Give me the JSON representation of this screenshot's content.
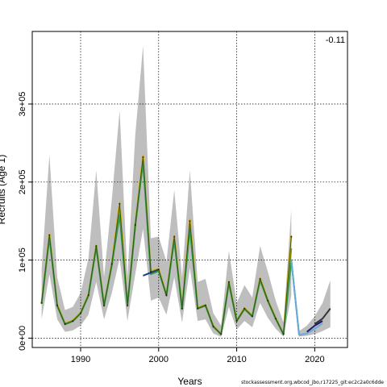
{
  "annotation": "-0.11",
  "footer": "stockassessment.org,wbcod_jbo,r17225_git:ec2c2a0c6dde",
  "chart_data": {
    "type": "area",
    "title": "",
    "xlabel": "Years",
    "ylabel": "Recruits (Age 1)",
    "xlim": [
      1983.8,
      2024.2
    ],
    "ylim": [
      -12000,
      393000
    ],
    "xticks": [
      1990,
      2000,
      2010,
      2020
    ],
    "yticks": [
      0,
      100000,
      200000,
      300000
    ],
    "ytick_labels": [
      "0e+00",
      "1e+05",
      "2e+05",
      "3e+05"
    ],
    "grid": true,
    "x": [
      1985,
      1986,
      1987,
      1988,
      1989,
      1990,
      1991,
      1992,
      1993,
      1994,
      1995,
      1996,
      1997,
      1998,
      1999,
      2000,
      2001,
      2002,
      2003,
      2004,
      2005,
      2006,
      2007,
      2008,
      2009,
      2010,
      2011,
      2012,
      2013,
      2014,
      2015,
      2016,
      2017
    ],
    "estimate": [
      45000,
      132000,
      42000,
      18000,
      22000,
      32000,
      55000,
      118000,
      42000,
      95000,
      172000,
      42000,
      145000,
      232000,
      85000,
      88000,
      55000,
      130000,
      38000,
      150000,
      38000,
      42000,
      15000,
      5000,
      72000,
      22000,
      38000,
      28000,
      76000,
      48000,
      25000,
      5000,
      130000
    ],
    "ci_lower": [
      24000,
      82000,
      24000,
      8000,
      10000,
      16000,
      30000,
      72000,
      24000,
      58000,
      102000,
      22000,
      82000,
      140000,
      48000,
      52000,
      30000,
      78000,
      20000,
      90000,
      22000,
      24000,
      6000,
      1500,
      40000,
      11000,
      22000,
      14000,
      45000,
      26000,
      12000,
      2000,
      55000
    ],
    "ci_upper": [
      88000,
      235000,
      78000,
      36000,
      40000,
      58000,
      102000,
      215000,
      78000,
      178000,
      292000,
      78000,
      260000,
      375000,
      128000,
      130000,
      98000,
      190000,
      78000,
      215000,
      72000,
      76000,
      32000,
      16000,
      112000,
      45000,
      68000,
      52000,
      118000,
      85000,
      48000,
      20000,
      165000
    ],
    "retro_series": [
      {
        "color": "#d9b100",
        "x": [
          1985,
          1986,
          1987,
          1988,
          1989,
          1990,
          1991,
          1992,
          1993,
          1994,
          1995,
          1996,
          1997,
          1998,
          1999,
          2000,
          2001,
          2002,
          2003,
          2004,
          2005,
          2006,
          2007,
          2008,
          2009,
          2010,
          2011,
          2012,
          2013,
          2014,
          2015,
          2016,
          2017
        ],
        "values": [
          46000,
          133000,
          43000,
          19000,
          23000,
          33000,
          56000,
          119000,
          43000,
          96000,
          174000,
          43000,
          147000,
          234000,
          86000,
          89000,
          56000,
          131000,
          39000,
          152000,
          39000,
          43000,
          16000,
          5500,
          73000,
          23000,
          39000,
          29000,
          77000,
          49000,
          26000,
          5500,
          131000
        ]
      },
      {
        "color": "#8a9a1a",
        "x": [
          1985,
          1986,
          1987,
          1988,
          1989,
          1990,
          1991,
          1992,
          1993,
          1994,
          1995,
          1996,
          1997,
          1998,
          1999,
          2000,
          2001,
          2002,
          2003,
          2004,
          2005,
          2006,
          2007,
          2008,
          2009,
          2010,
          2011,
          2012,
          2013,
          2014,
          2015,
          2016,
          2017
        ],
        "values": [
          44000,
          130000,
          41000,
          17500,
          21500,
          31500,
          54000,
          116000,
          41000,
          93000,
          165000,
          41000,
          143000,
          228000,
          83000,
          87000,
          54000,
          127000,
          37000,
          146000,
          37500,
          41500,
          14500,
          4800,
          70000,
          21500,
          37000,
          27500,
          74000,
          47000,
          24500,
          4800,
          115000
        ]
      },
      {
        "color": "#2e9a4a",
        "x": [
          1985,
          1986,
          1987,
          1988,
          1989,
          1990,
          1991,
          1992,
          1993,
          1994,
          1995,
          1996,
          1997,
          1998,
          1999,
          2000,
          2001,
          2002,
          2003,
          2004,
          2005,
          2006,
          2007,
          2008,
          2009,
          2010,
          2011,
          2012,
          2013,
          2014,
          2015,
          2016,
          2017,
          2018
        ],
        "values": [
          44500,
          129000,
          41500,
          18000,
          21800,
          31800,
          54500,
          117000,
          41500,
          94000,
          158000,
          42000,
          144000,
          226000,
          82000,
          86000,
          55000,
          126000,
          37500,
          140000,
          38000,
          42000,
          15000,
          5000,
          71000,
          22000,
          37500,
          28000,
          75000,
          47500,
          25000,
          5000,
          100000,
          4000
        ]
      },
      {
        "color": "#1f3a8a",
        "x": [
          1998,
          1999,
          2000
        ],
        "values": [
          80000,
          84000,
          88000
        ]
      },
      {
        "color": "#6aa9d9",
        "x": [
          2017,
          2018,
          2019,
          2020,
          2021
        ],
        "values": [
          100000,
          4000,
          6000,
          12000,
          19000
        ]
      },
      {
        "color": "#1a1a6a",
        "x": [
          2019,
          2020,
          2021
        ],
        "values": [
          8000,
          16000,
          22000
        ]
      },
      {
        "color": "#333333",
        "x": [
          2020,
          2021,
          2022
        ],
        "values": [
          18000,
          25000,
          38000
        ]
      }
    ],
    "projection": {
      "x": [
        2017,
        2018,
        2019,
        2020,
        2021,
        2022
      ],
      "lower": [
        100000,
        2000,
        3000,
        5000,
        9000,
        14000
      ],
      "upper": [
        100000,
        9000,
        16000,
        28000,
        45000,
        74000
      ]
    }
  }
}
